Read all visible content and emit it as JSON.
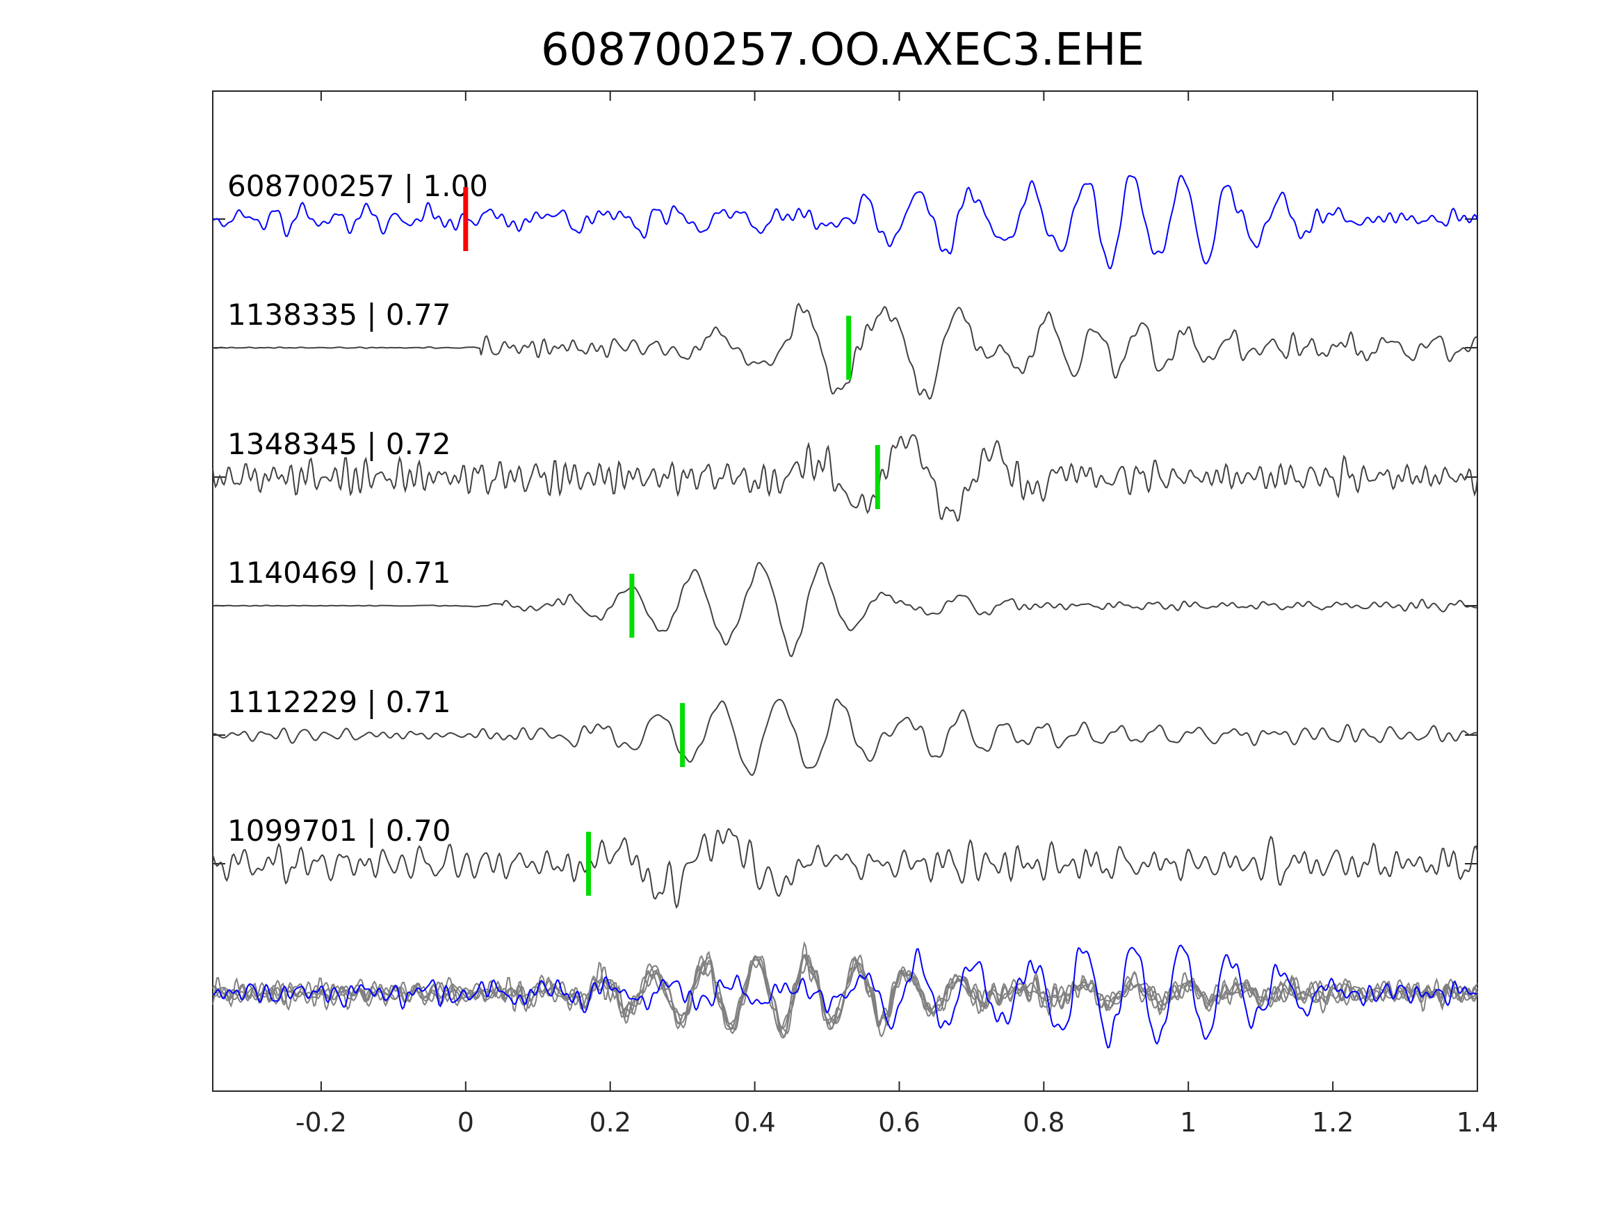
{
  "chart_data": {
    "type": "line",
    "title": "608700257.OO.AXEC3.EHE",
    "xlabel": "",
    "ylabel": "",
    "xlim": [
      -0.35,
      1.4
    ],
    "xticks": [
      -0.2,
      0,
      0.2,
      0.4,
      0.6,
      0.8,
      1.0,
      1.2,
      1.4
    ],
    "xtick_labels": [
      "-0.2",
      "0",
      "0.2",
      "0.4",
      "0.6",
      "0.8",
      "1",
      "1.2",
      "1.4"
    ],
    "grid": false,
    "colors": {
      "template": "#0000ff",
      "neighbors": "#404040",
      "overlay": "#808080",
      "pick_template": "#ff0000",
      "pick_neighbor": "#00dd00"
    },
    "series": [
      {
        "label": "608700257 | 1.00",
        "pick": 0.0,
        "pick_color": "red",
        "color": "blue",
        "seed": 11,
        "noise": 0.22,
        "wave": [
          [
            0.53,
            0.3,
            0.7,
            0.45
          ],
          [
            0.7,
            0.95,
            0.6,
            0.12
          ],
          [
            0.8,
            0.85,
            0.55,
            0.12
          ],
          [
            0.91,
            0.95,
            0.6,
            0.12
          ],
          [
            0.99,
            0.55,
            0.55,
            0.12
          ]
        ]
      },
      {
        "label": "1138335 | 0.77",
        "pick": 0.53,
        "pick_color": "green",
        "color": "dark",
        "seed": 23,
        "pre_start": 0.02,
        "noise": 0.18,
        "wave": [
          [
            0.57,
            1.3,
            0.95,
            0.14
          ],
          [
            0.8,
            0.5,
            0.55,
            0.28
          ],
          [
            1.05,
            0.35,
            0.5,
            0.25
          ],
          [
            1.21,
            0.3,
            0.5,
            0.18
          ]
        ]
      },
      {
        "label": "1348345 | 0.72",
        "pick": 0.57,
        "pick_color": "green",
        "color": "dark",
        "seed": 37,
        "noise": 0.38,
        "wave": [
          [
            0.6,
            1.0,
            1.1,
            0.1
          ],
          [
            0.72,
            0.4,
            0.9,
            0.1
          ]
        ]
      },
      {
        "label": "1140469 | 0.71",
        "pick": 0.23,
        "pick_color": "green",
        "color": "dark",
        "seed": 41,
        "pre_start": 0.05,
        "noise": 0.08,
        "wave": [
          [
            0.4,
            1.2,
            0.75,
            0.14
          ],
          [
            0.55,
            0.3,
            0.55,
            0.12
          ],
          [
            0.8,
            0.15,
            0.45,
            0.35
          ],
          [
            1.1,
            0.15,
            0.45,
            0.35
          ]
        ]
      },
      {
        "label": "1112229 | 0.71",
        "pick": 0.3,
        "pick_color": "green",
        "color": "dark",
        "seed": 53,
        "noise": 0.14,
        "wave": [
          [
            0.43,
            1.1,
            0.7,
            0.15
          ],
          [
            0.68,
            0.3,
            0.5,
            0.1
          ],
          [
            0.9,
            0.2,
            0.45,
            0.3
          ]
        ]
      },
      {
        "label": "1099701 | 0.70",
        "pick": 0.17,
        "pick_color": "green",
        "color": "dark",
        "seed": 67,
        "noise": 0.4,
        "wave": [
          [
            0.35,
            1.2,
            1.2,
            0.08
          ],
          [
            0.3,
            0.5,
            0.9,
            0.08
          ]
        ]
      }
    ],
    "overlay": {
      "description": "all traces aligned and superimposed",
      "template_color": "blue",
      "neighbor_color": "gray",
      "seeds": [
        91,
        92,
        93,
        94,
        95
      ],
      "template_seed": 99
    }
  }
}
